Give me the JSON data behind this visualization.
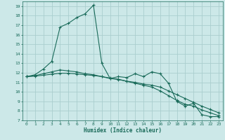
{
  "title": "",
  "xlabel": "Humidex (Indice chaleur)",
  "background_color": "#cce8e8",
  "grid_color": "#aacece",
  "line_color": "#1a6b5a",
  "xlim": [
    -0.5,
    23.5
  ],
  "ylim": [
    7,
    19.5
  ],
  "xticks": [
    0,
    1,
    2,
    3,
    4,
    5,
    6,
    7,
    8,
    9,
    10,
    11,
    12,
    13,
    14,
    15,
    16,
    17,
    18,
    19,
    20,
    21,
    22,
    23
  ],
  "yticks": [
    7,
    8,
    9,
    10,
    11,
    12,
    13,
    14,
    15,
    16,
    17,
    18,
    19
  ],
  "series": [
    [
      11.6,
      11.8,
      12.4,
      13.2,
      16.8,
      17.2,
      17.8,
      18.2,
      19.1,
      13.0,
      11.4,
      11.6,
      11.5,
      11.9,
      11.6,
      12.1,
      11.9,
      10.9,
      9.0,
      8.5,
      8.8,
      7.6,
      7.4,
      7.4
    ],
    [
      11.6,
      11.7,
      11.9,
      12.1,
      12.3,
      12.2,
      12.1,
      11.9,
      11.8,
      11.6,
      11.4,
      11.3,
      11.1,
      10.9,
      10.7,
      10.5,
      10.1,
      9.6,
      9.1,
      8.7,
      8.5,
      8.1,
      7.8,
      7.5
    ],
    [
      11.6,
      11.65,
      11.75,
      11.85,
      11.95,
      11.95,
      11.88,
      11.8,
      11.72,
      11.6,
      11.45,
      11.32,
      11.12,
      11.0,
      10.82,
      10.7,
      10.5,
      10.1,
      9.7,
      9.3,
      8.9,
      8.5,
      8.15,
      7.8
    ]
  ]
}
